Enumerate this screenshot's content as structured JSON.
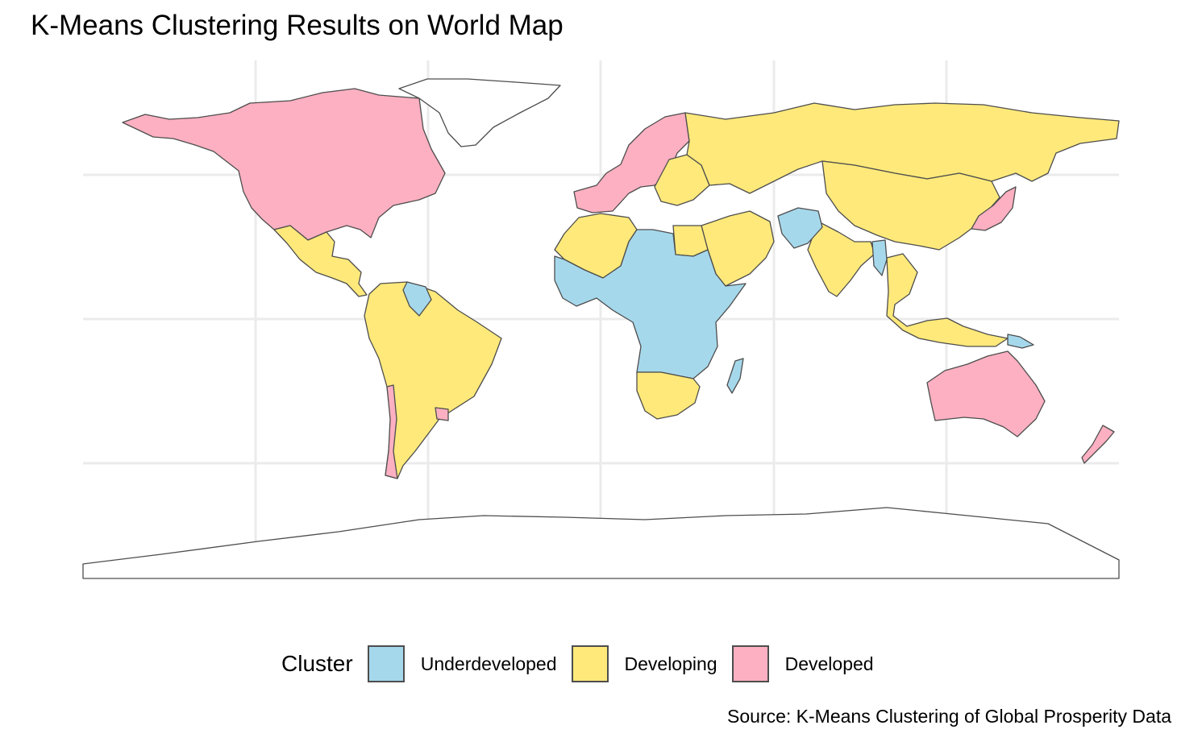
{
  "title": "K-Means Clustering Results on World Map",
  "caption": "Source: K-Means Clustering of Global Prosperity Data",
  "legend": {
    "title": "Cluster",
    "items": [
      {
        "label": "Underdeveloped",
        "color": "#a6d8ec"
      },
      {
        "label": "Developing",
        "color": "#fee97a"
      },
      {
        "label": "Developed",
        "color": "#fcb0c1"
      }
    ]
  },
  "colors": {
    "no_data": "#ffffff",
    "border": "#4d4d4d",
    "grid": "#ebebeb"
  },
  "regions": [
    {
      "name": "North America (Canada, USA)",
      "cluster": "Developed"
    },
    {
      "name": "Greenland",
      "cluster": "No data"
    },
    {
      "name": "Mexico & Central America",
      "cluster": "Developing"
    },
    {
      "name": "South America",
      "cluster": "Developing"
    },
    {
      "name": "Chile",
      "cluster": "Developed"
    },
    {
      "name": "Uruguay",
      "cluster": "Developed"
    },
    {
      "name": "Venezuela",
      "cluster": "Underdeveloped"
    },
    {
      "name": "Western Europe",
      "cluster": "Developed"
    },
    {
      "name": "Eastern Europe",
      "cluster": "Developing"
    },
    {
      "name": "Russia & Central Asia",
      "cluster": "Developing"
    },
    {
      "name": "China",
      "cluster": "Developing"
    },
    {
      "name": "Japan & South Korea",
      "cluster": "Developed"
    },
    {
      "name": "India",
      "cluster": "Developing"
    },
    {
      "name": "Afghanistan & Pakistan",
      "cluster": "Underdeveloped"
    },
    {
      "name": "Myanmar",
      "cluster": "Underdeveloped"
    },
    {
      "name": "Southeast Asia",
      "cluster": "Developing"
    },
    {
      "name": "Middle East",
      "cluster": "Developing"
    },
    {
      "name": "North Africa (Morocco, Algeria, Egypt)",
      "cluster": "Developing"
    },
    {
      "name": "Sub-Saharan Africa",
      "cluster": "Underdeveloped"
    },
    {
      "name": "Southern Africa",
      "cluster": "Developing"
    },
    {
      "name": "Madagascar",
      "cluster": "Underdeveloped"
    },
    {
      "name": "Australia",
      "cluster": "Developed"
    },
    {
      "name": "New Zealand",
      "cluster": "Developed"
    },
    {
      "name": "Papua New Guinea",
      "cluster": "Underdeveloped"
    },
    {
      "name": "Antarctica",
      "cluster": "No data"
    }
  ]
}
